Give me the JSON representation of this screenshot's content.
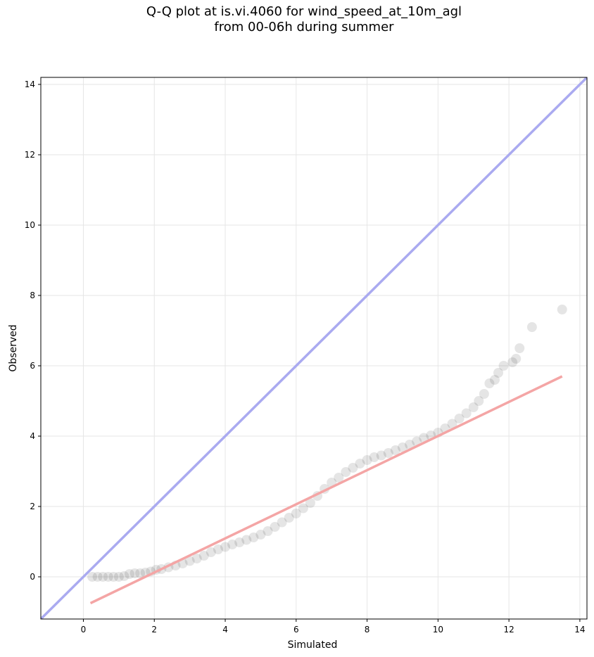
{
  "chart_data": {
    "type": "scatter",
    "title_line1": "Q-Q plot at is.vi.4060 for wind_speed_at_10m_agl",
    "title_line2": "from 00-06h during summer",
    "xlabel": "Simulated",
    "ylabel": "Observed",
    "xlim": [
      -1.2,
      14.2
    ],
    "ylim": [
      -1.2,
      14.2
    ],
    "xticks": [
      0,
      2,
      4,
      6,
      8,
      10,
      12,
      14
    ],
    "yticks": [
      0,
      2,
      4,
      6,
      8,
      10,
      12,
      14
    ],
    "grid": true,
    "colors": {
      "points": "#000000",
      "identity_line": "#aaaaf0",
      "fit_line": "#f4a5a5",
      "grid": "#e6e6e6"
    },
    "identity_line": {
      "x": [
        -1.2,
        14.2
      ],
      "y": [
        -1.2,
        14.2
      ]
    },
    "fit_line": {
      "x": [
        0.2,
        13.5
      ],
      "y": [
        -0.75,
        5.7
      ]
    },
    "points": [
      [
        0.25,
        0.0
      ],
      [
        0.4,
        0.0
      ],
      [
        0.55,
        0.0
      ],
      [
        0.7,
        0.0
      ],
      [
        0.85,
        0.0
      ],
      [
        1.0,
        0.0
      ],
      [
        1.15,
        0.02
      ],
      [
        1.3,
        0.08
      ],
      [
        1.45,
        0.1
      ],
      [
        1.6,
        0.1
      ],
      [
        1.75,
        0.12
      ],
      [
        1.9,
        0.15
      ],
      [
        2.05,
        0.2
      ],
      [
        2.2,
        0.22
      ],
      [
        2.4,
        0.27
      ],
      [
        2.6,
        0.32
      ],
      [
        2.8,
        0.38
      ],
      [
        3.0,
        0.45
      ],
      [
        3.2,
        0.52
      ],
      [
        3.4,
        0.6
      ],
      [
        3.6,
        0.7
      ],
      [
        3.8,
        0.78
      ],
      [
        4.0,
        0.85
      ],
      [
        4.2,
        0.92
      ],
      [
        4.4,
        0.98
      ],
      [
        4.6,
        1.05
      ],
      [
        4.8,
        1.12
      ],
      [
        5.0,
        1.2
      ],
      [
        5.2,
        1.3
      ],
      [
        5.4,
        1.42
      ],
      [
        5.6,
        1.55
      ],
      [
        5.8,
        1.68
      ],
      [
        6.0,
        1.8
      ],
      [
        6.2,
        1.95
      ],
      [
        6.4,
        2.1
      ],
      [
        6.6,
        2.3
      ],
      [
        6.8,
        2.5
      ],
      [
        7.0,
        2.68
      ],
      [
        7.2,
        2.82
      ],
      [
        7.4,
        2.98
      ],
      [
        7.6,
        3.1
      ],
      [
        7.8,
        3.22
      ],
      [
        8.0,
        3.32
      ],
      [
        8.2,
        3.4
      ],
      [
        8.4,
        3.45
      ],
      [
        8.6,
        3.52
      ],
      [
        8.8,
        3.6
      ],
      [
        9.0,
        3.68
      ],
      [
        9.2,
        3.76
      ],
      [
        9.4,
        3.85
      ],
      [
        9.6,
        3.95
      ],
      [
        9.8,
        4.02
      ],
      [
        10.0,
        4.1
      ],
      [
        10.2,
        4.22
      ],
      [
        10.4,
        4.35
      ],
      [
        10.6,
        4.5
      ],
      [
        10.8,
        4.65
      ],
      [
        11.0,
        4.82
      ],
      [
        11.15,
        5.0
      ],
      [
        11.3,
        5.2
      ],
      [
        11.45,
        5.5
      ],
      [
        11.6,
        5.6
      ],
      [
        11.7,
        5.8
      ],
      [
        11.85,
        6.0
      ],
      [
        12.1,
        6.1
      ],
      [
        12.2,
        6.2
      ],
      [
        12.3,
        6.5
      ],
      [
        12.65,
        7.1
      ],
      [
        13.5,
        7.6
      ]
    ]
  }
}
